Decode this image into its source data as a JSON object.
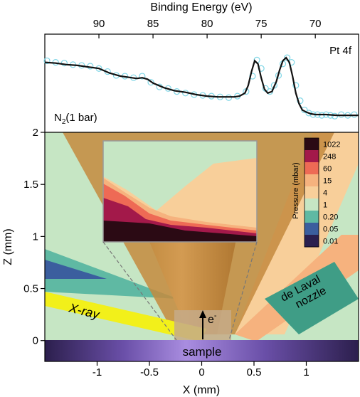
{
  "chart_data": [
    {
      "type": "scatter",
      "panel": "xps-spectrum",
      "title": "Binding Energy (eV)",
      "xlabel": "Binding Energy (eV)",
      "ylabel": "",
      "xlim": [
        95,
        66
      ],
      "ylim": [
        0,
        1
      ],
      "x_ticks": [
        90,
        85,
        80,
        75,
        70
      ],
      "x_reversed": true,
      "annotations": [
        "Pt 4f",
        "N",
        "2",
        "(1 bar)"
      ],
      "series": [
        {
          "style": "markers",
          "x": [
            94.8,
            94.0,
            93.2,
            92.4,
            91.6,
            90.8,
            90.0,
            89.2,
            88.4,
            87.6,
            86.8,
            86.0,
            85.2,
            84.4,
            83.6,
            82.8,
            82.0,
            81.2,
            80.4,
            79.6,
            78.8,
            78.0,
            77.2,
            76.4,
            75.8,
            75.4,
            75.0,
            74.6,
            74.2,
            73.8,
            73.4,
            73.0,
            72.6,
            72.2,
            71.8,
            71.4,
            71.0,
            70.6,
            70.2,
            69.8,
            69.4,
            69.0,
            68.6,
            68.2,
            67.6,
            67.0,
            66.4
          ],
          "y": [
            0.82,
            0.8,
            0.79,
            0.77,
            0.76,
            0.75,
            0.72,
            0.68,
            0.63,
            0.62,
            0.6,
            0.62,
            0.54,
            0.48,
            0.46,
            0.42,
            0.4,
            0.38,
            0.37,
            0.36,
            0.35,
            0.34,
            0.36,
            0.42,
            0.62,
            0.83,
            0.72,
            0.46,
            0.42,
            0.5,
            0.63,
            0.78,
            0.86,
            0.8,
            0.5,
            0.3,
            0.18,
            0.14,
            0.12,
            0.12,
            0.11,
            0.12,
            0.11,
            0.1,
            0.12,
            0.11,
            0.12
          ]
        },
        {
          "style": "line",
          "x": [
            95.0,
            94.0,
            93.0,
            92.0,
            91.0,
            90.0,
            89.0,
            88.0,
            87.0,
            86.5,
            86.0,
            85.5,
            85.0,
            84.0,
            83.0,
            82.0,
            81.0,
            80.0,
            79.0,
            78.0,
            77.5,
            77.0,
            76.5,
            76.2,
            75.9,
            75.6,
            75.3,
            75.0,
            74.7,
            74.4,
            74.0,
            73.6,
            73.3,
            73.0,
            72.7,
            72.4,
            72.1,
            71.8,
            71.5,
            71.2,
            70.8,
            70.4,
            70.0,
            69.0,
            68.0,
            67.0,
            66.0
          ],
          "y": [
            0.8,
            0.79,
            0.77,
            0.76,
            0.74,
            0.72,
            0.66,
            0.62,
            0.6,
            0.59,
            0.6,
            0.58,
            0.53,
            0.47,
            0.43,
            0.41,
            0.38,
            0.36,
            0.35,
            0.35,
            0.35,
            0.36,
            0.4,
            0.5,
            0.68,
            0.82,
            0.78,
            0.6,
            0.45,
            0.4,
            0.42,
            0.55,
            0.7,
            0.82,
            0.86,
            0.8,
            0.62,
            0.4,
            0.26,
            0.18,
            0.15,
            0.13,
            0.12,
            0.12,
            0.11,
            0.11,
            0.11
          ]
        }
      ],
      "colors": {
        "markers": "#7fd6e6",
        "line": "#111111"
      }
    },
    {
      "type": "heatmap",
      "panel": "pressure-map",
      "xlabel": "X (mm)",
      "ylabel": "Z (mm)",
      "xlim": [
        -1.5,
        1.5
      ],
      "ylim": [
        -0.2,
        2.0
      ],
      "x_ticks": [
        -1.0,
        -0.5,
        0,
        0.5,
        1.0
      ],
      "y_ticks": [
        0,
        0.5,
        1.0,
        1.5,
        2.0
      ],
      "colorbar": {
        "label": "Pressure (mbar)",
        "levels": [
          "1022",
          "248",
          "60",
          "15",
          "4",
          "1",
          "0.20",
          "0.05",
          "0.01"
        ],
        "colors": [
          "#2b0a14",
          "#a3194a",
          "#ee6a55",
          "#f6b27e",
          "#f8cf9a",
          "#c6e6c4",
          "#5fb9a3",
          "#3b5e9e",
          "#2a1f4f"
        ]
      },
      "labels": {
        "xray": "X-ray",
        "nozzle": "de Laval nozzle",
        "sample": "sample",
        "electron": "e",
        "electron_sup": "-"
      }
    }
  ]
}
